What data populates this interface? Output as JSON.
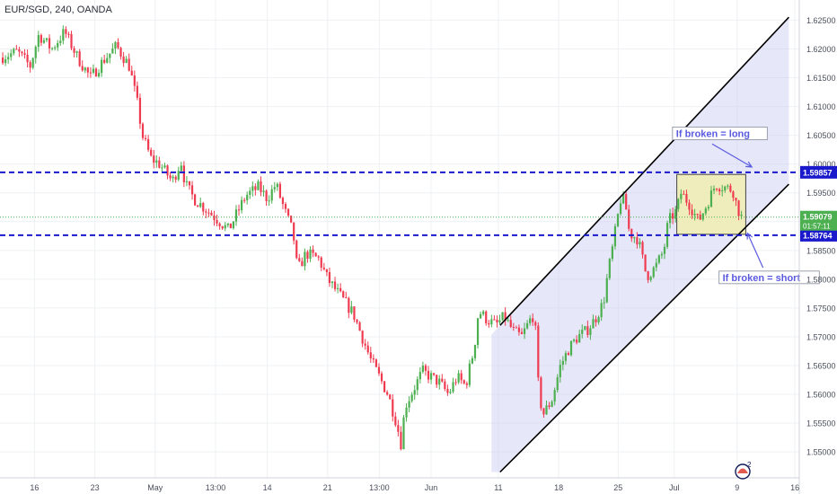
{
  "header": {
    "symbol_label": "EUR/SGD, 240, OANDA"
  },
  "colors": {
    "up_candle": "#4caf50",
    "down_candle": "#ef3b50",
    "level_line": "#1a1acc",
    "channel_line": "#000000",
    "channel_fill": "#c9c9f5",
    "box_fill": "#f3efae",
    "box_border": "#444444",
    "note_text": "#5a5adf",
    "current_price": "#4caf50",
    "grid": "#eef0f3"
  },
  "chart_data": {
    "type": "candlestick",
    "title": "EUR/SGD, 240, OANDA",
    "xlabel": "",
    "ylabel": "",
    "ylim": [
      1.5455,
      1.6285
    ],
    "x_ticks": [
      {
        "label": "16",
        "t": 0.04
      },
      {
        "label": "23",
        "t": 0.11
      },
      {
        "label": "May",
        "t": 0.18
      },
      {
        "label": "13:00",
        "t": 0.25
      },
      {
        "label": "14",
        "t": 0.31
      },
      {
        "label": "21",
        "t": 0.38
      },
      {
        "label": "13:00",
        "t": 0.44
      },
      {
        "label": "Jun",
        "t": 0.5
      },
      {
        "label": "11",
        "t": 0.578
      },
      {
        "label": "18",
        "t": 0.648
      },
      {
        "label": "25",
        "t": 0.717
      },
      {
        "label": "Jul",
        "t": 0.782
      },
      {
        "label": "9",
        "t": 0.855
      },
      {
        "label": "16",
        "t": 0.922
      }
    ],
    "y_ticks": [
      "1.55000",
      "1.55500",
      "1.56000",
      "1.56500",
      "1.57000",
      "1.57500",
      "1.58000",
      "1.58500",
      "1.59000",
      "1.59500",
      "1.60000",
      "1.60500",
      "1.61000",
      "1.61500",
      "1.62000",
      "1.62500"
    ],
    "grid": true,
    "price_path": [
      [
        0.0,
        1.6185
      ],
      [
        0.02,
        1.6195
      ],
      [
        0.035,
        1.617
      ],
      [
        0.045,
        1.6225
      ],
      [
        0.06,
        1.62
      ],
      [
        0.075,
        1.623
      ],
      [
        0.09,
        1.6185
      ],
      [
        0.105,
        1.615
      ],
      [
        0.12,
        1.618
      ],
      [
        0.135,
        1.6205
      ],
      [
        0.15,
        1.617
      ],
      [
        0.16,
        1.61
      ],
      [
        0.165,
        1.605
      ],
      [
        0.175,
        1.601
      ],
      [
        0.185,
        1.6
      ],
      [
        0.2,
        1.597
      ],
      [
        0.21,
        1.6005
      ],
      [
        0.215,
        1.5965
      ],
      [
        0.225,
        1.594
      ],
      [
        0.24,
        1.592
      ],
      [
        0.255,
        1.59
      ],
      [
        0.265,
        1.5885
      ],
      [
        0.275,
        1.5915
      ],
      [
        0.285,
        1.5945
      ],
      [
        0.3,
        1.596
      ],
      [
        0.31,
        1.594
      ],
      [
        0.32,
        1.5965
      ],
      [
        0.33,
        1.592
      ],
      [
        0.34,
        1.588
      ],
      [
        0.345,
        1.5815
      ],
      [
        0.355,
        1.5845
      ],
      [
        0.37,
        1.5835
      ],
      [
        0.38,
        1.58
      ],
      [
        0.39,
        1.578
      ],
      [
        0.4,
        1.576
      ],
      [
        0.41,
        1.574
      ],
      [
        0.42,
        1.57
      ],
      [
        0.43,
        1.566
      ],
      [
        0.44,
        1.563
      ],
      [
        0.45,
        1.56
      ],
      [
        0.46,
        1.555
      ],
      [
        0.465,
        1.5515
      ],
      [
        0.47,
        1.558
      ],
      [
        0.48,
        1.561
      ],
      [
        0.49,
        1.564
      ],
      [
        0.5,
        1.563
      ],
      [
        0.51,
        1.562
      ],
      [
        0.52,
        1.56
      ],
      [
        0.53,
        1.563
      ],
      [
        0.54,
        1.5615
      ],
      [
        0.55,
        1.568
      ],
      [
        0.555,
        1.5745
      ],
      [
        0.565,
        1.573
      ],
      [
        0.575,
        1.572
      ],
      [
        0.585,
        1.5735
      ],
      [
        0.595,
        1.571
      ],
      [
        0.605,
        1.57
      ],
      [
        0.615,
        1.573
      ],
      [
        0.62,
        1.574
      ],
      [
        0.625,
        1.56
      ],
      [
        0.63,
        1.5565
      ],
      [
        0.64,
        1.559
      ],
      [
        0.65,
        1.565
      ],
      [
        0.66,
        1.568
      ],
      [
        0.67,
        1.57
      ],
      [
        0.68,
        1.571
      ],
      [
        0.69,
        1.573
      ],
      [
        0.7,
        1.576
      ],
      [
        0.705,
        1.581
      ],
      [
        0.71,
        1.585
      ],
      [
        0.72,
        1.594
      ],
      [
        0.725,
        1.5935
      ],
      [
        0.73,
        1.588
      ],
      [
        0.74,
        1.587
      ],
      [
        0.75,
        1.5805
      ],
      [
        0.76,
        1.582
      ],
      [
        0.77,
        1.585
      ],
      [
        0.775,
        1.59
      ],
      [
        0.785,
        1.592
      ],
      [
        0.79,
        1.595
      ],
      [
        0.8,
        1.593
      ],
      [
        0.81,
        1.59
      ],
      [
        0.82,
        1.593
      ],
      [
        0.83,
        1.5965
      ],
      [
        0.84,
        1.596
      ],
      [
        0.85,
        1.5955
      ],
      [
        0.855,
        1.5925
      ],
      [
        0.86,
        1.5908
      ]
    ],
    "levels": [
      {
        "value": 1.59857,
        "label": "1.59857"
      },
      {
        "value": 1.58764,
        "label": "1.58764"
      }
    ],
    "current_price": {
      "value": 1.59079,
      "label": "1.59079",
      "countdown": "01:57:11"
    },
    "channel": {
      "upper": [
        [
          0.58,
          1.572
        ],
        [
          0.915,
          1.6255
        ]
      ],
      "lower": [
        [
          0.58,
          1.5465
        ],
        [
          0.915,
          1.5965
        ]
      ],
      "shade_start": 0.57
    },
    "box": {
      "t0": 0.785,
      "t1": 0.865,
      "y0": 1.5878,
      "y1": 1.5982
    },
    "annotations": [
      {
        "text": "If broken = long",
        "t": 0.78,
        "y": 1.6047
      },
      {
        "text": "If broken = short",
        "t": 0.834,
        "y": 1.5797
      }
    ],
    "arrows": [
      {
        "from": [
          0.826,
          1.6035
        ],
        "to": [
          0.872,
          1.5995
        ]
      },
      {
        "from": [
          0.885,
          1.582
        ],
        "to": [
          0.867,
          1.588
        ]
      }
    ],
    "watermark_badge": "2"
  }
}
